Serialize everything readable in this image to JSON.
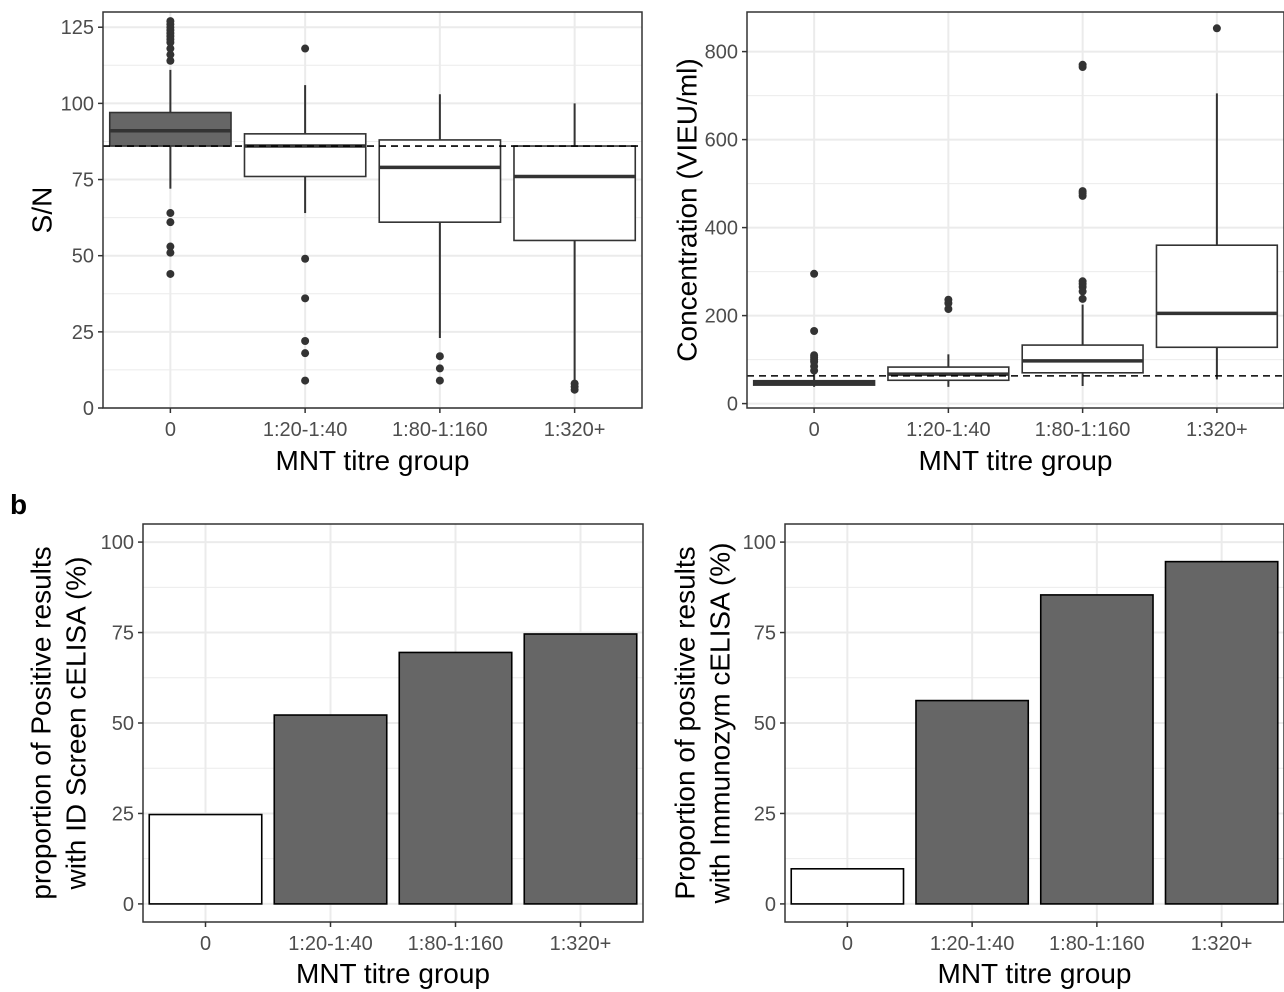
{
  "colors": {
    "filled": "#666666",
    "empty": "#ffffff",
    "stroke": "#333333",
    "grid": "#ebebeb",
    "outlier": "#333333"
  },
  "panel_b_label": "b",
  "chart_data": [
    {
      "id": "sn-box",
      "type": "box",
      "xlabel": "MNT titre group",
      "ylabel": "S/N",
      "categories": [
        "0",
        "1:20-1:40",
        "1:80-1:160",
        "1:320+"
      ],
      "ylim": [
        0,
        130
      ],
      "yticks": [
        0,
        25,
        50,
        75,
        100,
        125
      ],
      "threshold": 86,
      "grid": true,
      "boxes": [
        {
          "lower_whisker": 72,
          "q1": 86,
          "median": 91,
          "q3": 97,
          "upper_whisker": 111,
          "fill": "filled",
          "outliers": [
            44,
            51,
            53,
            61,
            64,
            114,
            116,
            118,
            120,
            121,
            122,
            123,
            124,
            125,
            126,
            127
          ]
        },
        {
          "lower_whisker": 64,
          "q1": 76,
          "median": 86,
          "q3": 90,
          "upper_whisker": 106,
          "fill": "empty",
          "outliers": [
            9,
            18,
            22,
            36,
            49,
            118
          ]
        },
        {
          "lower_whisker": 23,
          "q1": 61,
          "median": 79,
          "q3": 88,
          "upper_whisker": 103,
          "fill": "empty",
          "outliers": [
            9,
            13,
            17
          ]
        },
        {
          "lower_whisker": 8,
          "q1": 55,
          "median": 76,
          "q3": 86,
          "upper_whisker": 100,
          "fill": "empty",
          "outliers": [
            6,
            7,
            8
          ]
        }
      ]
    },
    {
      "id": "conc-box",
      "type": "box",
      "xlabel": "MNT titre group",
      "ylabel": "Concentration (VIEU/ml)",
      "categories": [
        "0",
        "1:20-1:40",
        "1:80-1:160",
        "1:320+"
      ],
      "ylim": [
        -10,
        890
      ],
      "yticks": [
        0,
        200,
        400,
        600,
        800
      ],
      "threshold": 63,
      "grid": true,
      "boxes": [
        {
          "lower_whisker": 38,
          "q1": 42,
          "median": 47,
          "q3": 52,
          "upper_whisker": 68,
          "fill": "filled",
          "outliers": [
            75,
            85,
            95,
            100,
            105,
            110,
            165,
            295
          ]
        },
        {
          "lower_whisker": 38,
          "q1": 53,
          "median": 67,
          "q3": 83,
          "upper_whisker": 112,
          "fill": "empty",
          "outliers": [
            215,
            228,
            236
          ]
        },
        {
          "lower_whisker": 40,
          "q1": 70,
          "median": 97,
          "q3": 133,
          "upper_whisker": 225,
          "fill": "empty",
          "outliers": [
            238,
            255,
            265,
            272,
            278,
            472,
            478,
            483,
            765,
            770
          ]
        },
        {
          "lower_whisker": 55,
          "q1": 128,
          "median": 205,
          "q3": 360,
          "upper_whisker": 705,
          "fill": "empty",
          "outliers": [
            853
          ]
        }
      ]
    },
    {
      "id": "idscreen-bar",
      "type": "bar",
      "xlabel": "MNT titre group",
      "ylabel_lines": [
        "proportion of Positive results",
        "with ID Screen cELISA (%)"
      ],
      "categories": [
        "0",
        "1:20-1:40",
        "1:80-1:160",
        "1:320+"
      ],
      "values": [
        24.7,
        52.2,
        69.5,
        74.6
      ],
      "fills": [
        "empty",
        "filled",
        "filled",
        "filled"
      ],
      "ylim": [
        -5,
        105
      ],
      "yticks": [
        0,
        25,
        50,
        75,
        100
      ],
      "grid": true
    },
    {
      "id": "immunozym-bar",
      "type": "bar",
      "xlabel": "MNT titre group",
      "ylabel_lines": [
        "Proportion of positive results",
        "with Immunozym cELISA (%)"
      ],
      "categories": [
        "0",
        "1:20-1:40",
        "1:80-1:160",
        "1:320+"
      ],
      "values": [
        9.7,
        56.2,
        85.4,
        94.6
      ],
      "fills": [
        "empty",
        "filled",
        "filled",
        "filled"
      ],
      "ylim": [
        -5,
        105
      ],
      "yticks": [
        0,
        25,
        50,
        75,
        100
      ],
      "grid": true
    }
  ]
}
